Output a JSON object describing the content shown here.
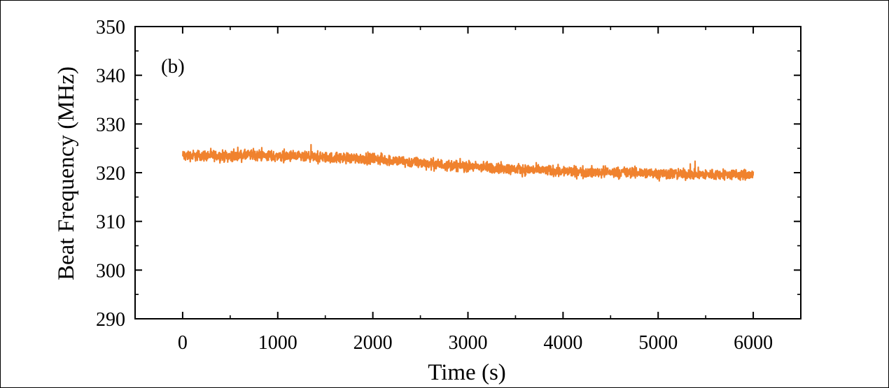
{
  "chart_data": {
    "type": "line",
    "panel_label": "(b)",
    "xlabel": "Time (s)",
    "ylabel": "Beat Frequency (MHz)",
    "xlim": [
      -500,
      6500
    ],
    "ylim": [
      290,
      350
    ],
    "xticks": [
      0,
      1000,
      2000,
      3000,
      4000,
      5000,
      6000
    ],
    "yticks": [
      290,
      300,
      310,
      320,
      330,
      340,
      350
    ],
    "series_color": "#f0822e",
    "series": [
      {
        "x": [
          0,
          250,
          500,
          750,
          1000,
          1250,
          1500,
          1750,
          2000,
          2250,
          2500,
          2750,
          3000,
          3250,
          3500,
          3750,
          4000,
          4250,
          4500,
          4750,
          5000,
          5250,
          5500,
          5750,
          6000
        ],
        "y": [
          323.5,
          323.5,
          323.4,
          323.6,
          323.4,
          323.2,
          323.1,
          323.0,
          322.9,
          322.4,
          322.0,
          321.6,
          321.3,
          321.0,
          320.7,
          320.5,
          320.3,
          320.1,
          320.1,
          320.0,
          319.9,
          319.7,
          319.6,
          319.6,
          319.5
        ],
        "noise_amplitude_mhz": 1.2
      }
    ]
  }
}
